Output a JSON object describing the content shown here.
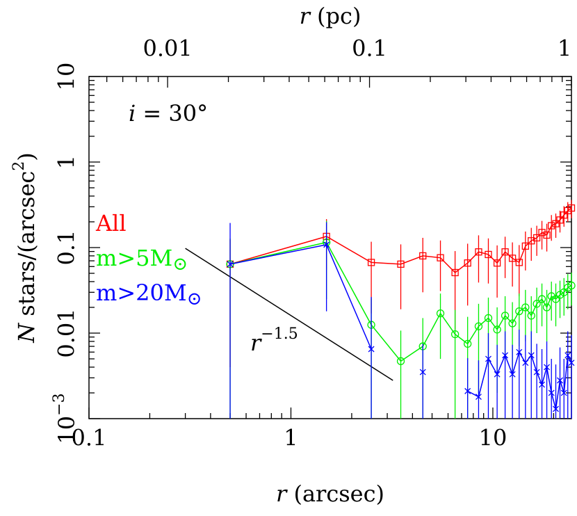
{
  "chart_data": {
    "type": "line",
    "log_x": true,
    "log_y": true,
    "minor_ticks": true,
    "x_label": [
      "r",
      " (arcsec)"
    ],
    "x2_label": [
      "r",
      " (pc)"
    ],
    "y_label": [
      "N",
      " stars/(arcsec",
      "2",
      ")"
    ],
    "annotation": [
      "i",
      " = 30°"
    ],
    "reference_line": {
      "label": "r",
      "exponent": "−1.5",
      "x": [
        0.3,
        3.2
      ],
      "y": [
        0.098,
        0.0028
      ],
      "color": "#000000"
    },
    "xlim": [
      0.1,
      24.5
    ],
    "xticks": [
      0.1,
      1,
      10
    ],
    "x2lim": [
      0.00408,
      1
    ],
    "x2ticks": [
      0.01,
      0.1,
      1
    ],
    "ylim": [
      0.001,
      10
    ],
    "yticks": [
      {
        "value": 0.001,
        "label": "10",
        "exponent": "−3"
      },
      0.01,
      0.1,
      1,
      10
    ],
    "x": [
      0.5,
      1.5,
      2.5,
      3.5,
      4.5,
      5.5,
      6.5,
      7.5,
      8.5,
      9.5,
      10.5,
      11.5,
      12.5,
      13.5,
      14.5,
      15.5,
      16.5,
      17.5,
      18.5,
      19.5,
      20.5,
      21.5,
      22.5,
      23.5,
      24.5
    ],
    "series": [
      {
        "name": "All",
        "marker": "square",
        "color": "#ff0000",
        "values": [
          0.064,
          0.135,
          0.067,
          0.064,
          0.08,
          0.076,
          0.051,
          0.066,
          0.089,
          0.083,
          0.066,
          0.089,
          0.075,
          0.067,
          0.104,
          0.12,
          0.13,
          0.15,
          0.14,
          0.18,
          0.19,
          0.21,
          0.24,
          0.27,
          0.29
        ],
        "errors": [
          0.06,
          0.08,
          0.05,
          0.045,
          0.05,
          0.045,
          0.04,
          0.045,
          0.05,
          0.045,
          0.04,
          0.045,
          0.04,
          0.04,
          0.05,
          0.05,
          0.05,
          0.055,
          0.05,
          0.06,
          0.06,
          0.06,
          0.065,
          0.07,
          0.07
        ]
      },
      {
        "name": "m>5M",
        "name_subscript": "⊙",
        "marker": "circle",
        "color": "#00ee00",
        "values": [
          0.064,
          0.115,
          0.0125,
          0.0047,
          0.007,
          0.017,
          0.0097,
          0.0075,
          0.012,
          0.015,
          0.011,
          0.016,
          0.013,
          0.018,
          0.02,
          0.016,
          0.022,
          0.025,
          0.02,
          0.027,
          0.025,
          0.028,
          0.03,
          0.034,
          0.036
        ],
        "errors": [
          0.064,
          0.09,
          0.013,
          0.006,
          0.008,
          0.012,
          0.009,
          0.008,
          0.01,
          0.011,
          0.009,
          0.011,
          0.01,
          0.011,
          0.012,
          0.011,
          0.012,
          0.013,
          0.012,
          0.013,
          0.013,
          0.013,
          0.014,
          0.015,
          0.015
        ]
      },
      {
        "name": "m>20M",
        "name_subscript": "⊙",
        "marker": "cross",
        "color": "#0000ff",
        "values": [
          0.064,
          0.108,
          0.0065,
          null,
          0.0035,
          null,
          null,
          0.0021,
          0.0018,
          0.005,
          0.0033,
          0.0055,
          0.0033,
          0.006,
          0.0045,
          0.0055,
          0.0035,
          0.0025,
          0.004,
          0.002,
          0.0013,
          0.0028,
          0.002,
          0.0055,
          0.0045
        ],
        "errors": [
          0.13,
          0.09,
          0.02,
          null,
          0.004,
          null,
          null,
          0.003,
          0.003,
          0.005,
          0.004,
          0.005,
          0.004,
          0.005,
          0.005,
          0.005,
          0.004,
          0.004,
          0.004,
          0.003,
          0.003,
          0.004,
          0.003,
          0.005,
          0.005
        ]
      }
    ]
  }
}
